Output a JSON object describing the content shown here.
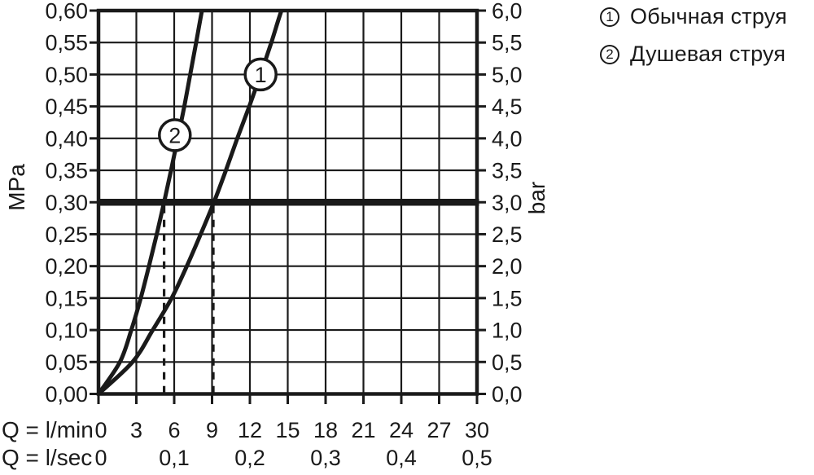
{
  "colors": {
    "ink": "#1a1a1a",
    "background": "#ffffff"
  },
  "chart_data": {
    "type": "line",
    "title": "",
    "grid": "on",
    "x_axis": {
      "row1_label": "Q = l/min",
      "row2_label": "Q = l/sec",
      "lmin_range": [
        0,
        30
      ],
      "lmin_ticks": [
        {
          "label": "0",
          "q": 0
        },
        {
          "label": "3",
          "q": 3
        },
        {
          "label": "6",
          "q": 6
        },
        {
          "label": "9",
          "q": 9
        },
        {
          "label": "12",
          "q": 12
        },
        {
          "label": "15",
          "q": 15
        },
        {
          "label": "18",
          "q": 18
        },
        {
          "label": "21",
          "q": 21
        },
        {
          "label": "24",
          "q": 24
        },
        {
          "label": "27",
          "q": 27
        },
        {
          "label": "30",
          "q": 30
        }
      ],
      "lsec_ticks": [
        {
          "label": "0",
          "q": 0
        },
        {
          "label": "0,1",
          "q": 6
        },
        {
          "label": "0,2",
          "q": 12
        },
        {
          "label": "0,3",
          "q": 18
        },
        {
          "label": "0,4",
          "q": 24
        },
        {
          "label": "0,5",
          "q": 30
        }
      ]
    },
    "y_axis_left": {
      "unit": "MPa",
      "range_mpa": [
        0,
        0.6
      ],
      "tick_step": 0.05,
      "tick_labels": [
        "0,60",
        "0,55",
        "0,50",
        "0,45",
        "0,40",
        "0,35",
        "0,30",
        "0,25",
        "0,20",
        "0,15",
        "0,10",
        "0,05",
        "0,00"
      ]
    },
    "y_axis_right": {
      "unit": "bar",
      "range_bar": [
        0,
        6
      ],
      "tick_step": 0.5,
      "tick_labels": [
        "6,0",
        "5,5",
        "5,0",
        "4,5",
        "4,0",
        "3,5",
        "3,0",
        "2,5",
        "2,0",
        "1,5",
        "1,0",
        "0,5",
        "0,0"
      ]
    },
    "reference_line": {
      "mpa": 0.3,
      "bar": 3.0
    },
    "dashed_guides_lmin": [
      5.2,
      9.1
    ],
    "series": [
      {
        "id": "1",
        "name": "Обычная струя",
        "flow_at_3bar_lmin": 9.1,
        "marker": {
          "q": 12.85,
          "p": 0.5
        },
        "points_q_mpa": [
          [
            0,
            0
          ],
          [
            2.7,
            0.05
          ],
          [
            4.3,
            0.1
          ],
          [
            5.8,
            0.15
          ],
          [
            7.0,
            0.2
          ],
          [
            8.1,
            0.25
          ],
          [
            9.15,
            0.3
          ],
          [
            10.1,
            0.35
          ],
          [
            11.0,
            0.4
          ],
          [
            11.95,
            0.45
          ],
          [
            12.85,
            0.5
          ],
          [
            13.7,
            0.55
          ],
          [
            14.5,
            0.6
          ],
          [
            15.3,
            0.64
          ]
        ]
      },
      {
        "id": "2",
        "name": "Душевая струя",
        "flow_at_3bar_lmin": 5.2,
        "marker": {
          "q": 6.05,
          "p": 0.405
        },
        "points_q_mpa": [
          [
            0,
            0
          ],
          [
            1.7,
            0.05
          ],
          [
            2.6,
            0.1
          ],
          [
            3.35,
            0.15
          ],
          [
            4.0,
            0.2
          ],
          [
            4.62,
            0.25
          ],
          [
            5.2,
            0.3
          ],
          [
            5.75,
            0.35
          ],
          [
            6.28,
            0.4
          ],
          [
            6.8,
            0.45
          ],
          [
            7.27,
            0.5
          ],
          [
            7.74,
            0.55
          ],
          [
            8.2,
            0.6
          ],
          [
            8.62,
            0.64
          ]
        ]
      }
    ]
  },
  "legend": {
    "items": [
      {
        "number": "1",
        "label": "Обычная струя"
      },
      {
        "number": "2",
        "label": "Душевая струя"
      }
    ]
  }
}
